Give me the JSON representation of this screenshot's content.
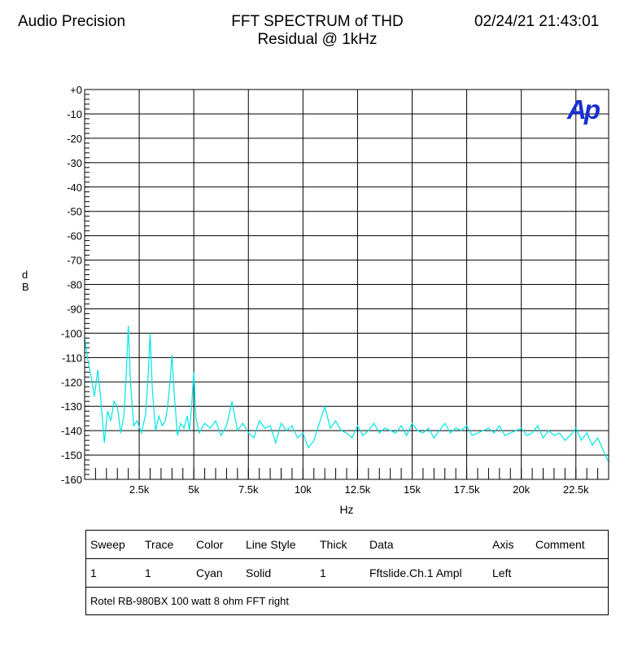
{
  "header": {
    "brand": "Audio Precision",
    "title_line1": "FFT SPECTRUM of THD",
    "title_line2": "Residual @ 1kHz",
    "timestamp": "02/24/21 21:43:01"
  },
  "logo": {
    "text": "Ap",
    "color": "#1a2fd0"
  },
  "chart_data": {
    "type": "line",
    "title": "FFT SPECTRUM of THD Residual @ 1kHz",
    "xlabel": "Hz",
    "ylabel": "dB",
    "xlim": [
      0,
      24000
    ],
    "ylim": [
      -160,
      0
    ],
    "x_ticks": [
      2500,
      5000,
      7500,
      10000,
      12500,
      15000,
      17500,
      20000,
      22500
    ],
    "x_tick_labels": [
      "2.5k",
      "5k",
      "7.5k",
      "10k",
      "12.5k",
      "15k",
      "17.5k",
      "20k",
      "22.5k"
    ],
    "y_ticks": [
      0,
      -10,
      -20,
      -30,
      -40,
      -50,
      -60,
      -70,
      -80,
      -90,
      -100,
      -110,
      -120,
      -130,
      -140,
      -150,
      -160
    ],
    "y_tick_labels": [
      "+0",
      "-10",
      "-20",
      "-30",
      "-40",
      "-50",
      "-60",
      "-70",
      "-80",
      "-90",
      "-100",
      "-110",
      "-120",
      "-130",
      "-140",
      "-150",
      "-160"
    ],
    "grid": true,
    "series": [
      {
        "color": "#00e5e5",
        "x": [
          0,
          150,
          300,
          450,
          600,
          750,
          900,
          1050,
          1200,
          1350,
          1500,
          1650,
          1800,
          1900,
          2000,
          2100,
          2250,
          2400,
          2600,
          2800,
          2900,
          3000,
          3100,
          3250,
          3400,
          3550,
          3700,
          3800,
          3900,
          4000,
          4100,
          4250,
          4400,
          4550,
          4700,
          4800,
          4900,
          5000,
          5100,
          5250,
          5500,
          5750,
          6000,
          6250,
          6500,
          6750,
          7000,
          7250,
          7500,
          7750,
          8000,
          8250,
          8500,
          8750,
          9000,
          9250,
          9500,
          9750,
          10000,
          10250,
          10500,
          10750,
          11000,
          11250,
          11500,
          11750,
          12000,
          12250,
          12500,
          12750,
          13000,
          13250,
          13500,
          13750,
          14000,
          14250,
          14500,
          14750,
          15000,
          15250,
          15500,
          15750,
          16000,
          16250,
          16500,
          16750,
          17000,
          17250,
          17500,
          17750,
          18000,
          18250,
          18500,
          18750,
          19000,
          19250,
          19500,
          19750,
          20000,
          20250,
          20500,
          20750,
          21000,
          21250,
          21500,
          21750,
          22000,
          22250,
          22500,
          22750,
          23000,
          23250,
          23500,
          23750,
          24000
        ],
        "y": [
          -102,
          -111,
          -118,
          -126,
          -115,
          -128,
          -145,
          -132,
          -136,
          -128,
          -130,
          -141,
          -134,
          -118,
          -97,
          -120,
          -138,
          -136,
          -141,
          -133,
          -119,
          -100,
          -123,
          -140,
          -134,
          -138,
          -136,
          -130,
          -121,
          -109,
          -124,
          -142,
          -137,
          -139,
          -134,
          -140,
          -130,
          -116,
          -135,
          -141,
          -137,
          -139,
          -136,
          -142,
          -138,
          -128,
          -140,
          -137,
          -141,
          -143,
          -136,
          -139,
          -138,
          -145,
          -137,
          -140,
          -138,
          -143,
          -141,
          -147,
          -144,
          -137,
          -130,
          -139,
          -136,
          -140,
          -141,
          -143,
          -138,
          -142,
          -140,
          -137,
          -141,
          -139,
          -140,
          -141,
          -138,
          -142,
          -137,
          -140,
          -141,
          -139,
          -143,
          -140,
          -137,
          -141,
          -139,
          -140,
          -138,
          -142,
          -141,
          -140,
          -139,
          -141,
          -138,
          -142,
          -141,
          -140,
          -139,
          -142,
          -141,
          -138,
          -143,
          -140,
          -142,
          -141,
          -144,
          -142,
          -139,
          -144,
          -141,
          -146,
          -143,
          -148,
          -153
        ]
      }
    ]
  },
  "legend_table": {
    "headers": {
      "sweep": "Sweep",
      "trace": "Trace",
      "color": "Color",
      "line_style": "Line Style",
      "thick": "Thick",
      "data": "Data",
      "axis": "Axis",
      "comment": "Comment"
    },
    "row": {
      "sweep": "1",
      "trace": "1",
      "color": "Cyan",
      "line_style": "Solid",
      "thick": "1",
      "data": "Fftslide.Ch.1 Ampl",
      "axis": "Left",
      "comment": ""
    },
    "note": "Rotel RB-980BX 100 watt 8 ohm FFT right"
  }
}
